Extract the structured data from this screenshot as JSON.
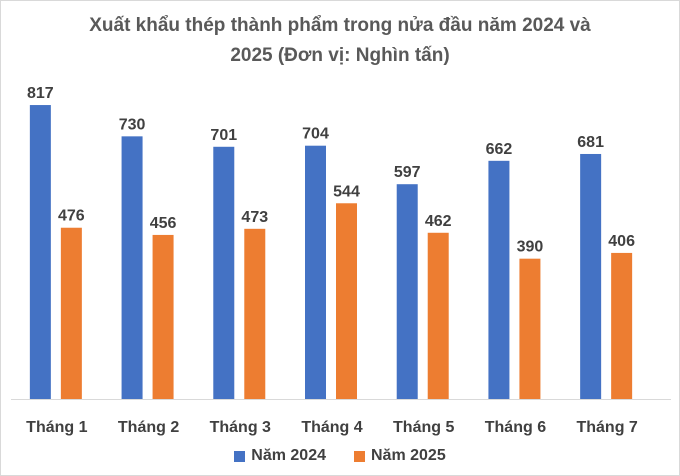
{
  "chart_data": {
    "type": "bar",
    "title_line1": "Xuất khẩu thép thành phẩm trong nửa đầu năm 2024 và",
    "title_line2": "2025 (Đơn vị: Nghìn tấn)",
    "categories": [
      "Tháng 1",
      "Tháng 2",
      "Tháng 3",
      "Tháng 4",
      "Tháng 5",
      "Tháng 6",
      "Tháng 7"
    ],
    "series": [
      {
        "name": "Năm 2024",
        "color": "#4472C4",
        "values": [
          817,
          730,
          701,
          704,
          597,
          662,
          681
        ]
      },
      {
        "name": "Năm 2025",
        "color": "#ED7D31",
        "values": [
          476,
          456,
          473,
          544,
          462,
          390,
          406
        ]
      }
    ],
    "ylim": [
      0,
      1000
    ],
    "grid": false,
    "legend_position": "bottom",
    "data_labels": true
  }
}
